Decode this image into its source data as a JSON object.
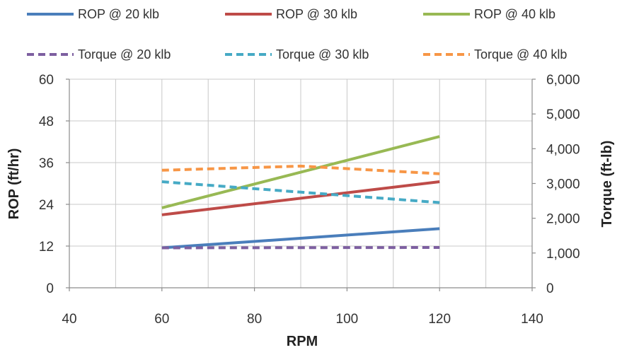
{
  "chart_data": {
    "type": "line",
    "title": "",
    "xlabel": "RPM",
    "ylabel": "ROP (ft/hr)",
    "y2label": "Torque (ft-lb)",
    "xlim": [
      40,
      140
    ],
    "ylim": [
      0,
      60
    ],
    "y2lim": [
      0,
      6000
    ],
    "x_ticks": [
      "40",
      "60",
      "80",
      "100",
      "120",
      "140"
    ],
    "y_ticks": [
      "0",
      "12",
      "24",
      "36",
      "48",
      "60"
    ],
    "y2_ticks": [
      "0",
      "1,000",
      "2,000",
      "3,000",
      "4,000",
      "5,000",
      "6,000"
    ],
    "grid": true,
    "legend_position": "top",
    "series": [
      {
        "name": "ROP @ 20 klb",
        "axis": "left",
        "style": "solid",
        "color": "#4a7ebb",
        "x": [
          60,
          120
        ],
        "y": [
          11.5,
          17
        ]
      },
      {
        "name": "ROP @ 30 klb",
        "axis": "left",
        "style": "solid",
        "color": "#be4b48",
        "x": [
          60,
          120
        ],
        "y": [
          21,
          30.5
        ]
      },
      {
        "name": "ROP @ 40 klb",
        "axis": "left",
        "style": "solid",
        "color": "#98b954",
        "x": [
          60,
          120
        ],
        "y": [
          23,
          43.5
        ]
      },
      {
        "name": "Torque @ 20 klb",
        "axis": "right",
        "style": "dashed",
        "color": "#7d5fa0",
        "x": [
          60,
          120
        ],
        "y": [
          1150,
          1160
        ]
      },
      {
        "name": "Torque @ 30 klb",
        "axis": "right",
        "style": "dashed",
        "color": "#46aac5",
        "x": [
          60,
          120
        ],
        "y": [
          3050,
          2450
        ]
      },
      {
        "name": "Torque @ 40 klb",
        "axis": "right",
        "style": "dashed",
        "color": "#f79646",
        "x": [
          60,
          90,
          120
        ],
        "y": [
          3380,
          3500,
          3280
        ]
      }
    ]
  }
}
